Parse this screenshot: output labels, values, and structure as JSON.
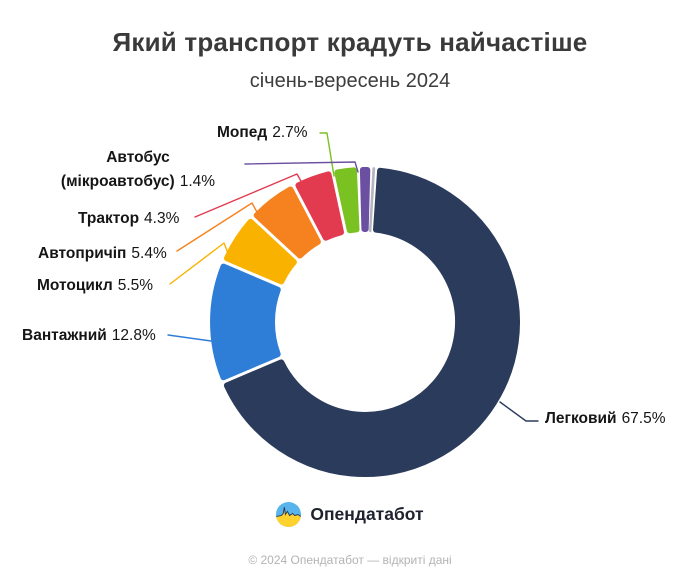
{
  "header": {
    "title": "Який транспорт крадуть найчастіше",
    "subtitle": "січень-вересень 2024"
  },
  "chart_data": {
    "type": "pie",
    "subtype": "donut",
    "title": "Який транспорт крадуть найчастіше",
    "subtitle": "січень-вересень 2024",
    "unit": "%",
    "total": 100,
    "start_angle_deg": 4,
    "inner_radius_ratio": 0.58,
    "legend_position": "callout-labels",
    "segments": [
      {
        "label": "Легковий",
        "value": 67.5,
        "value_label": "67.5%",
        "color": "#2b3b5c"
      },
      {
        "label": "Вантажний",
        "value": 12.8,
        "value_label": "12.8%",
        "color": "#2e7ed8"
      },
      {
        "label": "Мотоцикл",
        "value": 5.5,
        "value_label": "5.5%",
        "color": "#f9b200"
      },
      {
        "label": "Автопричіп",
        "value": 5.4,
        "value_label": "5.4%",
        "color": "#f5821f"
      },
      {
        "label": "Трактор",
        "value": 4.3,
        "value_label": "4.3%",
        "color": "#e23a4f"
      },
      {
        "label": "Мопед",
        "value": 2.7,
        "value_label": "2.7%",
        "color": "#7ac122"
      },
      {
        "label": "Автобус\n(мікроавтобус)",
        "value": 1.4,
        "value_label": "1.4%",
        "color": "#6b4fa1"
      },
      {
        "label": "",
        "value": 0.4,
        "value_label": "",
        "color": "#b7b5bd"
      }
    ]
  },
  "footer": {
    "brand": "Опендатабот",
    "copyright": "© 2024 Опендатабот — відкриті дані"
  }
}
